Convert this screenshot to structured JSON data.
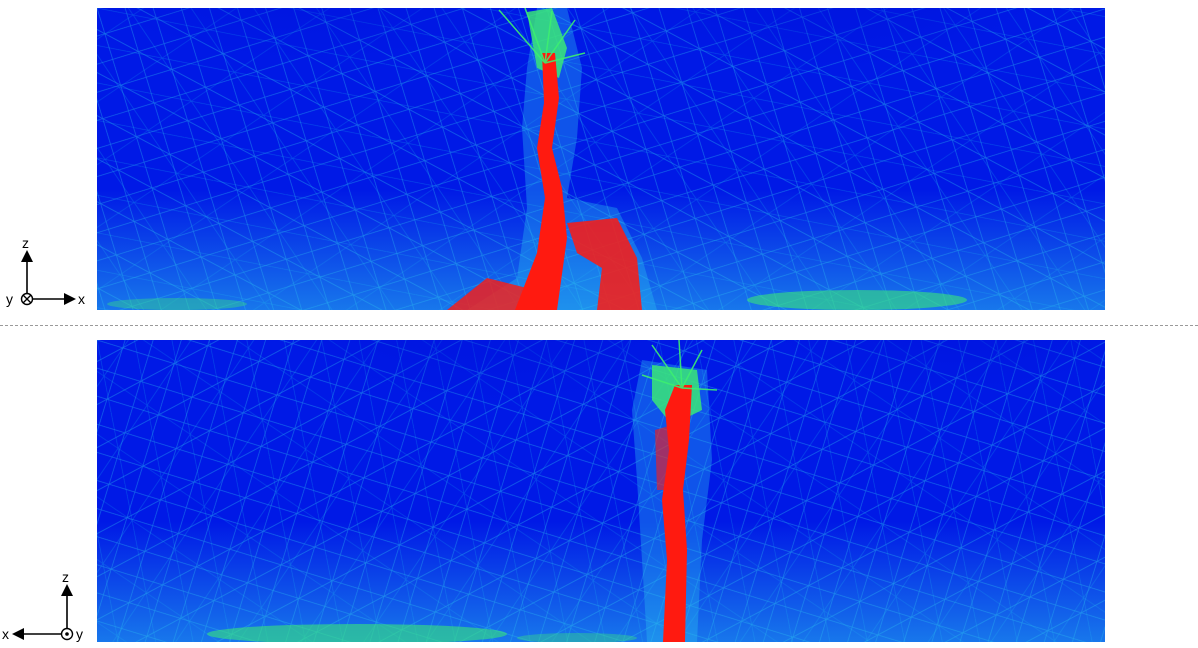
{
  "colors": {
    "background_field": "#0019e6",
    "mesh_light": "#2bc4f0",
    "mesh_mid": "#11a7ee",
    "mesh_green": "#3cf070",
    "crack_red": "#ff1a10",
    "separator": "#9a9a9a"
  },
  "panels": [
    {
      "name": "top-view",
      "axes": {
        "vertical": "z",
        "horizontal": "x",
        "out_of_plane": "y",
        "out_of_plane_symbol": "into-page"
      }
    },
    {
      "name": "bottom-view",
      "axes": {
        "vertical": "z",
        "horizontal": "x",
        "out_of_plane": "y",
        "out_of_plane_symbol": "out-of-page"
      }
    }
  ]
}
